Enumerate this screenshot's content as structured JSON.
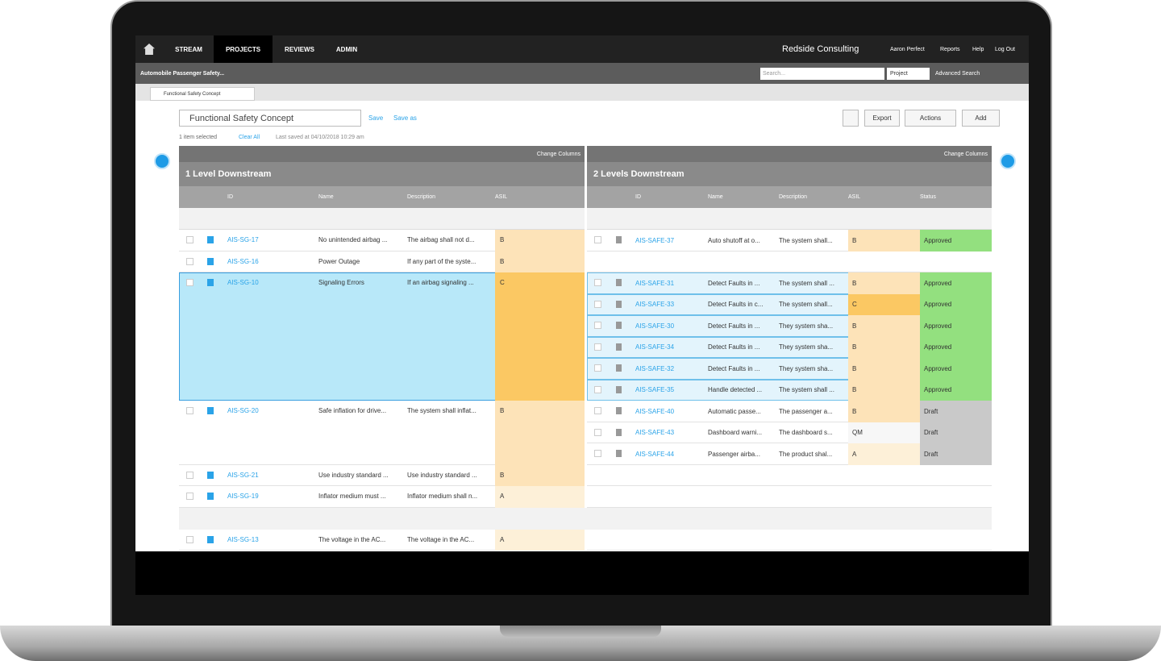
{
  "nav": {
    "items": [
      "STREAM",
      "PROJECTS",
      "REVIEWS",
      "ADMIN"
    ],
    "company": "Redside Consulting",
    "links": [
      "Aaron Perfect",
      "Reports",
      "Help",
      "Log Out"
    ]
  },
  "subbar": {
    "project": "Automobile Passenger Safety...",
    "search_placeholder": "Search...",
    "search_scope": "Project",
    "advanced": "Advanced Search"
  },
  "tab": {
    "title": "Functional Safety Concept"
  },
  "toolbar": {
    "view": "Functional Safety Concept",
    "save": "Save",
    "save_as": "Save as",
    "export": "Export",
    "actions": "Actions",
    "add": "Add"
  },
  "status": {
    "selected": "1 item selected",
    "clear": "Clear All",
    "saved": "Last saved at 04/10/2018 10:29 am"
  },
  "left": {
    "change": "Change Columns",
    "title": "1 Level Downstream",
    "columns": [
      "ID",
      "Name",
      "Description",
      "ASIL"
    ],
    "rows": [
      {
        "id": "AIS-SG-17",
        "name": "No unintended airbag ...",
        "description": "The airbag shall not d...",
        "asil": "B",
        "asil_color": "#fde3b8"
      },
      {
        "id": "AIS-SG-16",
        "name": "Power Outage",
        "description": "If any part of the syste...",
        "asil": "B",
        "asil_color": "#fde3b8"
      },
      {
        "id": "AIS-SG-10",
        "name": "Signaling Errors",
        "description": "If an airbag signaling ...",
        "asil": "C",
        "asil_color": "#fbc863",
        "selected": true
      },
      {
        "id": "AIS-SG-20",
        "name": "Safe inflation for drive...",
        "description": "The system shall inflat...",
        "asil": "B",
        "asil_color": "#fde3b8"
      },
      {
        "id": "AIS-SG-21",
        "name": "Use industry standard ...",
        "description": "Use industry standard ...",
        "asil": "B",
        "asil_color": "#fde3b8"
      },
      {
        "id": "AIS-SG-19",
        "name": "Inflator medium must ...",
        "description": "Inflator medium shall n...",
        "asil": "A",
        "asil_color": "#fdf0d8"
      },
      {
        "id": "AIS-SG-13",
        "name": "The voltage in the AC...",
        "description": "The voltage in the AC...",
        "asil": "A",
        "asil_color": "#fdf0d8"
      }
    ]
  },
  "right": {
    "change": "Change Columns",
    "title": "2 Levels Downstream",
    "columns": [
      "ID",
      "Name",
      "Description",
      "ASIL",
      "Status"
    ],
    "groups": [
      [
        {
          "id": "AIS-SAFE-37",
          "name": "Auto shutoff at o...",
          "description": "The system shall...",
          "asil": "B",
          "asil_color": "#fde3b8",
          "status": "Approved",
          "status_color": "#93e07f"
        }
      ],
      [],
      [
        {
          "id": "AIS-SAFE-31",
          "name": "Detect Faults in ...",
          "description": "The system shall ...",
          "asil": "B",
          "asil_color": "#fde3b8",
          "status": "Approved",
          "status_color": "#93e07f"
        },
        {
          "id": "AIS-SAFE-33",
          "name": "Detect Faults in c...",
          "description": "The system shall...",
          "asil": "C",
          "asil_color": "#fbc863",
          "status": "Approved",
          "status_color": "#93e07f"
        },
        {
          "id": "AIS-SAFE-30",
          "name": "Detect Faults in ...",
          "description": "They system sha...",
          "asil": "B",
          "asil_color": "#fde3b8",
          "status": "Approved",
          "status_color": "#93e07f"
        },
        {
          "id": "AIS-SAFE-34",
          "name": "Detect Faults in ...",
          "description": "They system sha...",
          "asil": "B",
          "asil_color": "#fde3b8",
          "status": "Approved",
          "status_color": "#93e07f"
        },
        {
          "id": "AIS-SAFE-32",
          "name": "Detect Faults in ...",
          "description": "They system sha...",
          "asil": "B",
          "asil_color": "#fde3b8",
          "status": "Approved",
          "status_color": "#93e07f"
        },
        {
          "id": "AIS-SAFE-35",
          "name": "Handle detected ...",
          "description": "The system shall ...",
          "asil": "B",
          "asil_color": "#fde3b8",
          "status": "Approved",
          "status_color": "#93e07f"
        }
      ],
      [
        {
          "id": "AIS-SAFE-40",
          "name": "Automatic passe...",
          "description": "The passenger a...",
          "asil": "B",
          "asil_color": "#fde3b8",
          "status": "Draft",
          "status_color": "#c9c9c9"
        },
        {
          "id": "AIS-SAFE-43",
          "name": "Dashboard warni...",
          "description": "The dashboard s...",
          "asil": "QM",
          "asil_color": "#f7f7f7",
          "status": "Draft",
          "status_color": "#c9c9c9"
        },
        {
          "id": "AIS-SAFE-44",
          "name": "Passenger airba...",
          "description": "The product shal...",
          "asil": "A",
          "asil_color": "#fdf0d8",
          "status": "Draft",
          "status_color": "#c9c9c9"
        }
      ],
      [],
      [],
      []
    ]
  }
}
